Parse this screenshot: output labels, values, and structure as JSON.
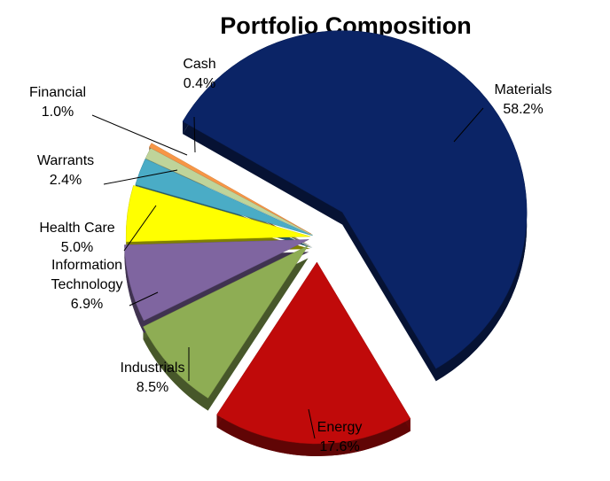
{
  "chart_data": {
    "type": "pie",
    "title": "Portfolio Composition",
    "categories": [
      "Materials",
      "Energy",
      "Industrials",
      "Information Technology",
      "Health Care",
      "Warrants",
      "Financial",
      "Cash"
    ],
    "values": [
      58.2,
      17.6,
      8.5,
      6.9,
      5.0,
      2.4,
      1.0,
      0.4
    ],
    "value_labels": [
      "58.2%",
      "17.6%",
      "8.5%",
      "6.9%",
      "5.0%",
      "2.4%",
      "1.0%",
      "0.4%"
    ],
    "colors": [
      "#0B2466",
      "#C00A0A",
      "#8EAD54",
      "#7F65A0",
      "#FFFF00",
      "#4AACC6",
      "#BFD49A",
      "#F79646"
    ],
    "legend": "none",
    "style": "3d exploded"
  }
}
